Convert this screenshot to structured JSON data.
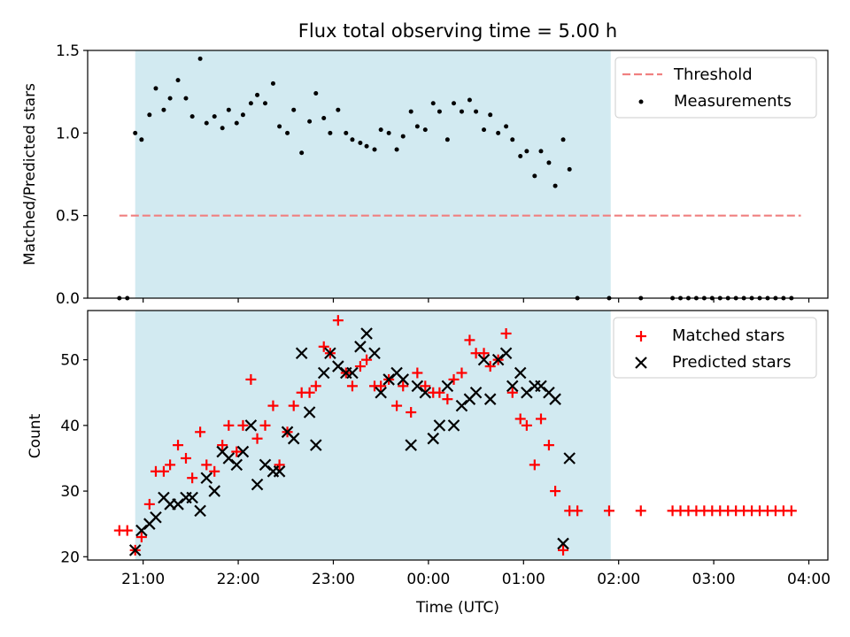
{
  "chart_data": [
    {
      "type": "scatter",
      "title": "Flux total observing time = 5.00 h",
      "ylabel": "Matched/Predicted stars",
      "xlabel": "",
      "ylim": [
        0,
        1.5
      ],
      "yticks": [
        "0.0",
        "0.5",
        "1.0",
        "1.5"
      ],
      "legend_position": "top-right",
      "threshold": {
        "name": "Threshold",
        "value": 0.5,
        "x_range": [
          "20:45",
          "03:55"
        ],
        "color": "#f08080"
      },
      "observing_window": {
        "start": "20:55",
        "end": "01:55",
        "color": "#add8e6"
      },
      "series": [
        {
          "name": "Measurements",
          "color": "#000000",
          "points": [
            [
              "20:45",
              0
            ],
            [
              "20:50",
              0
            ],
            [
              "20:55",
              1.0
            ],
            [
              "20:59",
              0.96
            ],
            [
              "21:04",
              1.11
            ],
            [
              "21:08",
              1.27
            ],
            [
              "21:13",
              1.14
            ],
            [
              "21:17",
              1.21
            ],
            [
              "21:22",
              1.32
            ],
            [
              "21:27",
              1.21
            ],
            [
              "21:31",
              1.1
            ],
            [
              "21:36",
              1.45
            ],
            [
              "21:40",
              1.06
            ],
            [
              "21:45",
              1.1
            ],
            [
              "21:50",
              1.03
            ],
            [
              "21:54",
              1.14
            ],
            [
              "21:59",
              1.06
            ],
            [
              "22:03",
              1.11
            ],
            [
              "22:08",
              1.18
            ],
            [
              "22:12",
              1.23
            ],
            [
              "22:17",
              1.18
            ],
            [
              "22:22",
              1.3
            ],
            [
              "22:26",
              1.04
            ],
            [
              "22:31",
              1.0
            ],
            [
              "22:35",
              1.14
            ],
            [
              "22:40",
              0.88
            ],
            [
              "22:45",
              1.07
            ],
            [
              "22:49",
              1.24
            ],
            [
              "22:54",
              1.09
            ],
            [
              "22:58",
              1.0
            ],
            [
              "23:03",
              1.14
            ],
            [
              "23:08",
              1.0
            ],
            [
              "23:12",
              0.96
            ],
            [
              "23:17",
              0.94
            ],
            [
              "23:21",
              0.92
            ],
            [
              "23:26",
              0.9
            ],
            [
              "23:30",
              1.02
            ],
            [
              "23:35",
              1.0
            ],
            [
              "23:40",
              0.9
            ],
            [
              "23:44",
              0.98
            ],
            [
              "23:49",
              1.13
            ],
            [
              "23:53",
              1.04
            ],
            [
              "23:58",
              1.02
            ],
            [
              "00:03",
              1.18
            ],
            [
              "00:07",
              1.13
            ],
            [
              "00:12",
              0.96
            ],
            [
              "00:16",
              1.18
            ],
            [
              "00:21",
              1.13
            ],
            [
              "00:26",
              1.2
            ],
            [
              "00:30",
              1.13
            ],
            [
              "00:35",
              1.02
            ],
            [
              "00:39",
              1.11
            ],
            [
              "00:44",
              1.0
            ],
            [
              "00:49",
              1.04
            ],
            [
              "00:53",
              0.96
            ],
            [
              "00:58",
              0.86
            ],
            [
              "01:02",
              0.89
            ],
            [
              "01:07",
              0.74
            ],
            [
              "01:11",
              0.89
            ],
            [
              "01:16",
              0.82
            ],
            [
              "01:20",
              0.68
            ],
            [
              "01:25",
              0.96
            ],
            [
              "01:29",
              0.78
            ],
            [
              "01:34",
              0
            ],
            [
              "01:54",
              0
            ],
            [
              "02:14",
              0
            ],
            [
              "02:34",
              0
            ],
            [
              "02:39",
              0
            ],
            [
              "02:44",
              0
            ],
            [
              "02:49",
              0
            ],
            [
              "02:54",
              0
            ],
            [
              "02:59",
              0
            ],
            [
              "03:04",
              0
            ],
            [
              "03:09",
              0
            ],
            [
              "03:14",
              0
            ],
            [
              "03:19",
              0
            ],
            [
              "03:24",
              0
            ],
            [
              "03:29",
              0
            ],
            [
              "03:34",
              0
            ],
            [
              "03:39",
              0
            ],
            [
              "03:44",
              0
            ],
            [
              "03:49",
              0
            ]
          ]
        }
      ]
    },
    {
      "type": "scatter",
      "title": "",
      "ylabel": "Count",
      "xlabel": "Time (UTC)",
      "ylim": [
        19.5,
        57.5
      ],
      "yticks": [
        "20",
        "30",
        "40",
        "50"
      ],
      "xlim": [
        "20:25",
        "04:12"
      ],
      "xticks": [
        "21:00",
        "22:00",
        "23:00",
        "00:00",
        "01:00",
        "02:00",
        "03:00",
        "04:00"
      ],
      "legend_position": "top-right",
      "observing_window": {
        "start": "20:55",
        "end": "01:55",
        "color": "#add8e6"
      },
      "series": [
        {
          "name": "Matched stars",
          "color": "#ff0000",
          "marker": "plus",
          "points": [
            [
              "20:45",
              24
            ],
            [
              "20:50",
              24
            ],
            [
              "20:55",
              21
            ],
            [
              "20:59",
              23
            ],
            [
              "21:04",
              28
            ],
            [
              "21:08",
              33
            ],
            [
              "21:13",
              33
            ],
            [
              "21:17",
              34
            ],
            [
              "21:22",
              37
            ],
            [
              "21:27",
              35
            ],
            [
              "21:31",
              32
            ],
            [
              "21:36",
              39
            ],
            [
              "21:40",
              34
            ],
            [
              "21:45",
              33
            ],
            [
              "21:50",
              37
            ],
            [
              "21:54",
              40
            ],
            [
              "21:59",
              36
            ],
            [
              "22:03",
              40
            ],
            [
              "22:08",
              47
            ],
            [
              "22:12",
              38
            ],
            [
              "22:17",
              40
            ],
            [
              "22:22",
              43
            ],
            [
              "22:26",
              34
            ],
            [
              "22:31",
              39
            ],
            [
              "22:35",
              43
            ],
            [
              "22:40",
              45
            ],
            [
              "22:45",
              45
            ],
            [
              "22:49",
              46
            ],
            [
              "22:54",
              52
            ],
            [
              "22:58",
              51
            ],
            [
              "23:03",
              56
            ],
            [
              "23:08",
              48
            ],
            [
              "23:12",
              46
            ],
            [
              "23:17",
              49
            ],
            [
              "23:21",
              50
            ],
            [
              "23:26",
              46
            ],
            [
              "23:30",
              46
            ],
            [
              "23:35",
              47
            ],
            [
              "23:40",
              43
            ],
            [
              "23:44",
              46
            ],
            [
              "23:49",
              42
            ],
            [
              "23:53",
              48
            ],
            [
              "23:58",
              46
            ],
            [
              "00:03",
              45
            ],
            [
              "00:07",
              45
            ],
            [
              "00:12",
              44
            ],
            [
              "00:16",
              47
            ],
            [
              "00:21",
              48
            ],
            [
              "00:26",
              53
            ],
            [
              "00:30",
              51
            ],
            [
              "00:35",
              51
            ],
            [
              "00:39",
              49
            ],
            [
              "00:44",
              50
            ],
            [
              "00:49",
              54
            ],
            [
              "00:53",
              45
            ],
            [
              "00:58",
              41
            ],
            [
              "01:02",
              40
            ],
            [
              "01:07",
              34
            ],
            [
              "01:11",
              41
            ],
            [
              "01:16",
              37
            ],
            [
              "01:20",
              30
            ],
            [
              "01:25",
              21
            ],
            [
              "01:29",
              27
            ],
            [
              "01:34",
              27
            ],
            [
              "01:54",
              27
            ],
            [
              "02:14",
              27
            ],
            [
              "02:34",
              27
            ],
            [
              "02:39",
              27
            ],
            [
              "02:44",
              27
            ],
            [
              "02:49",
              27
            ],
            [
              "02:54",
              27
            ],
            [
              "02:59",
              27
            ],
            [
              "03:04",
              27
            ],
            [
              "03:09",
              27
            ],
            [
              "03:14",
              27
            ],
            [
              "03:19",
              27
            ],
            [
              "03:24",
              27
            ],
            [
              "03:29",
              27
            ],
            [
              "03:34",
              27
            ],
            [
              "03:39",
              27
            ],
            [
              "03:44",
              27
            ],
            [
              "03:49",
              27
            ]
          ]
        },
        {
          "name": "Predicted stars",
          "color": "#000000",
          "marker": "x",
          "points": [
            [
              "20:55",
              21
            ],
            [
              "20:59",
              24
            ],
            [
              "21:04",
              25
            ],
            [
              "21:08",
              26
            ],
            [
              "21:13",
              29
            ],
            [
              "21:17",
              28
            ],
            [
              "21:22",
              28
            ],
            [
              "21:27",
              29
            ],
            [
              "21:31",
              29
            ],
            [
              "21:36",
              27
            ],
            [
              "21:40",
              32
            ],
            [
              "21:45",
              30
            ],
            [
              "21:50",
              36
            ],
            [
              "21:54",
              35
            ],
            [
              "21:59",
              34
            ],
            [
              "22:03",
              36
            ],
            [
              "22:08",
              40
            ],
            [
              "22:12",
              31
            ],
            [
              "22:17",
              34
            ],
            [
              "22:22",
              33
            ],
            [
              "22:26",
              33
            ],
            [
              "22:31",
              39
            ],
            [
              "22:35",
              38
            ],
            [
              "22:40",
              51
            ],
            [
              "22:45",
              42
            ],
            [
              "22:49",
              37
            ],
            [
              "22:54",
              48
            ],
            [
              "22:58",
              51
            ],
            [
              "23:03",
              49
            ],
            [
              "23:08",
              48
            ],
            [
              "23:12",
              48
            ],
            [
              "23:17",
              52
            ],
            [
              "23:21",
              54
            ],
            [
              "23:26",
              51
            ],
            [
              "23:30",
              45
            ],
            [
              "23:35",
              47
            ],
            [
              "23:40",
              48
            ],
            [
              "23:44",
              47
            ],
            [
              "23:49",
              37
            ],
            [
              "23:53",
              46
            ],
            [
              "23:58",
              45
            ],
            [
              "00:03",
              38
            ],
            [
              "00:07",
              40
            ],
            [
              "00:12",
              46
            ],
            [
              "00:16",
              40
            ],
            [
              "00:21",
              43
            ],
            [
              "00:26",
              44
            ],
            [
              "00:30",
              45
            ],
            [
              "00:35",
              50
            ],
            [
              "00:39",
              44
            ],
            [
              "00:44",
              50
            ],
            [
              "00:49",
              51
            ],
            [
              "00:53",
              46
            ],
            [
              "00:58",
              48
            ],
            [
              "01:02",
              45
            ],
            [
              "01:07",
              46
            ],
            [
              "01:11",
              46
            ],
            [
              "01:16",
              45
            ],
            [
              "01:20",
              44
            ],
            [
              "01:25",
              22
            ],
            [
              "01:29",
              35
            ]
          ]
        }
      ]
    }
  ]
}
